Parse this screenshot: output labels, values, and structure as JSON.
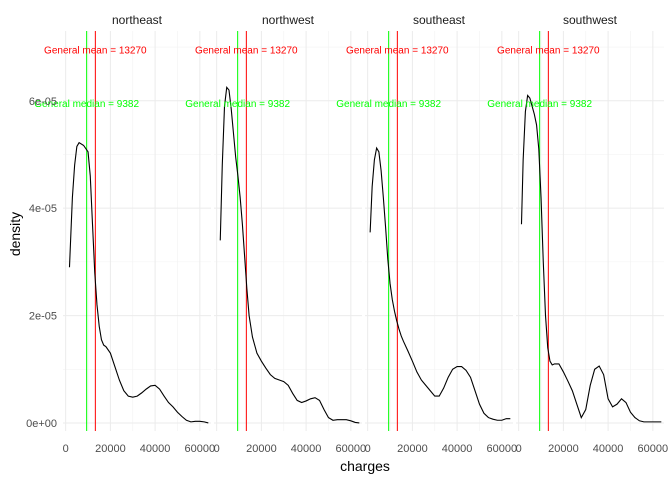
{
  "chart_data": {
    "type": "line",
    "kind": "density",
    "facet_by": "region",
    "xlabel": "charges",
    "ylabel": "density",
    "xlim": [
      -1200,
      65000
    ],
    "ylim": [
      -1.5e-06,
      7.3e-05
    ],
    "x_ticks": [
      0,
      20000,
      40000,
      60000
    ],
    "x_tick_labels": [
      "0",
      "20000",
      "40000",
      "60000"
    ],
    "y_ticks": [
      0,
      2e-05,
      4e-05,
      6e-05
    ],
    "y_tick_labels": [
      "0e+00",
      "2e-05",
      "4e-05",
      "6e-05"
    ],
    "grid": true,
    "reference_lines": [
      {
        "name": "mean",
        "value": 13270,
        "color": "#ff0000",
        "label": "General mean = 13270",
        "label_y": 6.95e-05
      },
      {
        "name": "median",
        "value": 9382,
        "color": "#00ff00",
        "label": "General median  = 9382",
        "label_y": 5.95e-05
      }
    ],
    "panels": [
      {
        "title": "northeast",
        "x": [
          1700,
          3000,
          4000,
          5000,
          6000,
          8000,
          10000,
          11000,
          12000,
          13000,
          14000,
          15000,
          16000,
          17000,
          18000,
          20000,
          22000,
          24000,
          26000,
          28000,
          30000,
          32000,
          34000,
          36000,
          38000,
          40000,
          42000,
          44000,
          46000,
          48000,
          50000,
          52000,
          54000,
          56000,
          58000,
          60000,
          62000,
          63800
        ],
        "y": [
          2.9e-05,
          4.2e-05,
          4.8e-05,
          5.15e-05,
          5.22e-05,
          5.17e-05,
          5.05e-05,
          4.6e-05,
          3.7e-05,
          2.8e-05,
          2.2e-05,
          1.8e-05,
          1.55e-05,
          1.45e-05,
          1.42e-05,
          1.3e-05,
          1.05e-05,
          8e-06,
          6e-06,
          5e-06,
          4.8e-06,
          5e-06,
          5.6e-06,
          6.3e-06,
          6.9e-06,
          7e-06,
          6.3e-06,
          5e-06,
          3.8e-06,
          3e-06,
          2e-06,
          1.2e-06,
          5e-07,
          2e-07,
          3e-07,
          3e-07,
          2e-07,
          0
        ]
      },
      {
        "title": "northwest",
        "x": [
          1600,
          2500,
          3500,
          4500,
          5500,
          6500,
          7500,
          8500,
          9500,
          10500,
          11500,
          12500,
          13500,
          14500,
          16000,
          18000,
          20000,
          22000,
          24000,
          26000,
          28000,
          30000,
          32000,
          34000,
          36000,
          38000,
          40000,
          42000,
          44000,
          46000,
          48000,
          50000,
          52000,
          54000,
          56000,
          58000,
          60000,
          62000,
          63800
        ],
        "y": [
          3.4e-05,
          4.8e-05,
          5.9e-05,
          6.25e-05,
          6.2e-05,
          5.85e-05,
          5.4e-05,
          4.95e-05,
          4.6e-05,
          4.2e-05,
          3.7e-05,
          3.1e-05,
          2.5e-05,
          2e-05,
          1.6e-05,
          1.3e-05,
          1.15e-05,
          1.02e-05,
          9e-06,
          8.3e-06,
          8e-06,
          7.7e-06,
          7e-06,
          5.5e-06,
          4.2e-06,
          3.8e-06,
          4.1e-06,
          4.5e-06,
          4.7e-06,
          4.2e-06,
          2.5e-06,
          1e-06,
          5e-07,
          6e-07,
          6e-07,
          6e-07,
          4e-07,
          1e-07,
          0
        ]
      },
      {
        "title": "southeast",
        "x": [
          1100,
          2000,
          3000,
          4000,
          5000,
          6000,
          7000,
          8000,
          9000,
          10000,
          11000,
          12000,
          13000,
          14000,
          15000,
          16000,
          18000,
          20000,
          22000,
          24000,
          26000,
          28000,
          30000,
          32000,
          34000,
          36000,
          38000,
          40000,
          42000,
          44000,
          46000,
          48000,
          50000,
          52000,
          54000,
          56000,
          58000,
          60000,
          62000,
          63800
        ],
        "y": [
          3.55e-05,
          4.4e-05,
          4.9e-05,
          5.12e-05,
          5.05e-05,
          4.7e-05,
          4.2e-05,
          3.65e-05,
          3.05e-05,
          2.6e-05,
          2.3e-05,
          2.08e-05,
          1.9e-05,
          1.75e-05,
          1.62e-05,
          1.52e-05,
          1.34e-05,
          1.15e-05,
          9.5e-06,
          8e-06,
          7e-06,
          6e-06,
          5e-06,
          5e-06,
          6.5e-06,
          8.5e-06,
          1e-05,
          1.05e-05,
          1.05e-05,
          9.8e-06,
          8.5e-06,
          6e-06,
          3.5e-06,
          1.8e-06,
          1e-06,
          7e-07,
          5e-07,
          5e-07,
          8e-07,
          8e-07
        ]
      },
      {
        "title": "southwest",
        "x": [
          1250,
          2000,
          3000,
          4000,
          5000,
          6000,
          7000,
          8000,
          9000,
          10000,
          11000,
          12000,
          13000,
          14000,
          15000,
          16000,
          18000,
          20000,
          22000,
          24000,
          26000,
          28000,
          30000,
          32000,
          34000,
          36000,
          38000,
          40000,
          42000,
          44000,
          46000,
          48000,
          50000,
          52000,
          54000,
          56000,
          58000,
          60000,
          62000,
          63800
        ],
        "y": [
          3.7e-05,
          4.9e-05,
          5.8e-05,
          6.1e-05,
          6.05e-05,
          5.9e-05,
          5.75e-05,
          5.55e-05,
          5.1e-05,
          4.2e-05,
          3e-05,
          2e-05,
          1.4e-05,
          1.15e-05,
          1.08e-05,
          1.1e-05,
          1.1e-05,
          9.5e-06,
          7.8e-06,
          6e-06,
          3.5e-06,
          1e-06,
          2.5e-06,
          7e-06,
          1e-05,
          1.06e-05,
          9e-06,
          4.5e-06,
          3e-06,
          3.5e-06,
          4.5e-06,
          3.8e-06,
          2e-06,
          1e-06,
          4e-07,
          2e-07,
          2e-07,
          2e-07,
          2e-07,
          2e-07
        ]
      }
    ]
  }
}
